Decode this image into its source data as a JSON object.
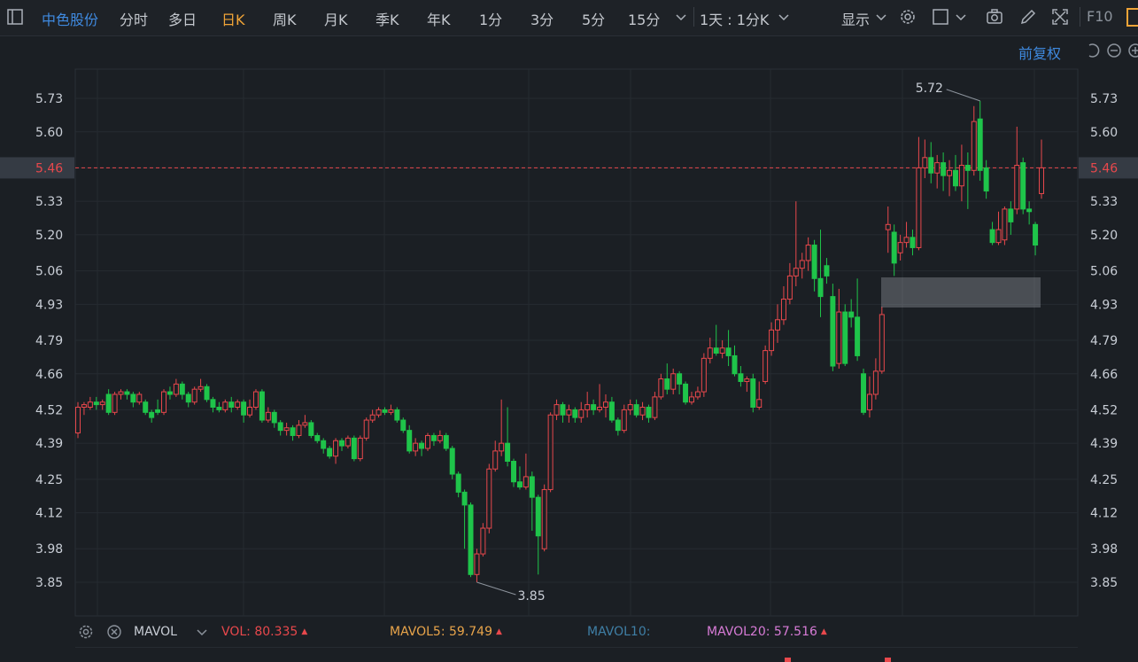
{
  "toolbar": {
    "stock_name": "中色股份",
    "periods": [
      "分时",
      "多日",
      "日K",
      "周K",
      "月K",
      "季K",
      "年K",
      "1分",
      "3分",
      "5分",
      "15分"
    ],
    "active_period": "日K",
    "range_label": "1天 : 1分K",
    "display_label": "显示",
    "f10_label": "F10"
  },
  "adjust_label": "前复权",
  "colors": {
    "background": "#1b1f24",
    "up": "#e8484c",
    "down": "#1fc44a",
    "accent": "#f0a437",
    "link": "#3f8ae0",
    "current_price_line": "#e8484c",
    "mavol5": "#e8a44a",
    "mavol10": "#3f7fa6",
    "mavol20": "#d77bd6"
  },
  "icons": [
    "panel-toggle-icon",
    "chevron-down-icon",
    "gear-icon",
    "square-icon",
    "camera-icon",
    "pencil-icon",
    "fullscreen-icon",
    "undo-icon",
    "zoom-out-icon",
    "zoom-in-icon",
    "close-circle-icon"
  ],
  "volume_bar": {
    "indicator": "MAVOL",
    "vol_label": "VOL:",
    "vol_value": "80.335",
    "mavol5_label": "MAVOL5:",
    "mavol5_value": "59.749",
    "mavol10_label": "MAVOL10:",
    "mavol10_value": "",
    "mavol20_label": "MAVOL20:",
    "mavol20_value": "57.516"
  },
  "chart_data": {
    "type": "candlestick",
    "ylim": [
      3.79,
      5.8
    ],
    "y_ticks": [
      "5.73",
      "5.60",
      "5.46",
      "5.33",
      "5.20",
      "5.06",
      "4.93",
      "4.79",
      "4.66",
      "4.52",
      "4.39",
      "4.25",
      "4.12",
      "3.98",
      "3.85"
    ],
    "current_price": "5.46",
    "high_annotation": "5.72",
    "low_annotation": "3.85",
    "candles": [
      [
        4.43,
        4.53,
        4.55,
        4.41
      ],
      [
        4.53,
        4.54,
        4.55,
        4.5
      ],
      [
        4.53,
        4.55,
        4.57,
        4.52
      ],
      [
        4.55,
        4.54,
        4.57,
        4.52
      ],
      [
        4.54,
        4.55,
        4.56,
        4.52
      ],
      [
        4.58,
        4.51,
        4.6,
        4.5
      ],
      [
        4.51,
        4.58,
        4.59,
        4.5
      ],
      [
        4.58,
        4.59,
        4.6,
        4.56
      ],
      [
        4.59,
        4.58,
        4.6,
        4.56
      ],
      [
        4.58,
        4.55,
        4.59,
        4.53
      ],
      [
        4.55,
        4.58,
        4.59,
        4.54
      ],
      [
        4.55,
        4.51,
        4.56,
        4.5
      ],
      [
        4.51,
        4.49,
        4.52,
        4.47
      ],
      [
        4.52,
        4.51,
        4.56,
        4.5
      ],
      [
        4.51,
        4.59,
        4.6,
        4.5
      ],
      [
        4.59,
        4.58,
        4.61,
        4.56
      ],
      [
        4.58,
        4.62,
        4.64,
        4.57
      ],
      [
        4.62,
        4.58,
        4.63,
        4.56
      ],
      [
        4.58,
        4.55,
        4.59,
        4.53
      ],
      [
        4.55,
        4.6,
        4.61,
        4.54
      ],
      [
        4.6,
        4.61,
        4.64,
        4.59
      ],
      [
        4.61,
        4.56,
        4.62,
        4.55
      ],
      [
        4.56,
        4.53,
        4.57,
        4.51
      ],
      [
        4.53,
        4.52,
        4.55,
        4.51
      ],
      [
        4.52,
        4.55,
        4.56,
        4.51
      ],
      [
        4.55,
        4.53,
        4.57,
        4.51
      ],
      [
        4.53,
        4.55,
        4.56,
        4.52
      ],
      [
        4.55,
        4.5,
        4.56,
        4.47
      ],
      [
        4.5,
        4.53,
        4.56,
        4.49
      ],
      [
        4.53,
        4.59,
        4.6,
        4.52
      ],
      [
        4.59,
        4.48,
        4.6,
        4.47
      ],
      [
        4.48,
        4.51,
        4.53,
        4.47
      ],
      [
        4.51,
        4.47,
        4.52,
        4.45
      ],
      [
        4.47,
        4.44,
        4.48,
        4.42
      ],
      [
        4.44,
        4.45,
        4.47,
        4.42
      ],
      [
        4.45,
        4.42,
        4.46,
        4.4
      ],
      [
        4.42,
        4.46,
        4.48,
        4.41
      ],
      [
        4.46,
        4.47,
        4.5,
        4.45
      ],
      [
        4.47,
        4.42,
        4.48,
        4.41
      ],
      [
        4.42,
        4.4,
        4.43,
        4.39
      ],
      [
        4.4,
        4.37,
        4.41,
        4.35
      ],
      [
        4.37,
        4.34,
        4.38,
        4.33
      ],
      [
        4.34,
        4.4,
        4.41,
        4.31
      ],
      [
        4.4,
        4.38,
        4.41,
        4.36
      ],
      [
        4.38,
        4.41,
        4.42,
        4.37
      ],
      [
        4.41,
        4.33,
        4.42,
        4.32
      ],
      [
        4.33,
        4.41,
        4.42,
        4.32
      ],
      [
        4.41,
        4.48,
        4.49,
        4.4
      ],
      [
        4.48,
        4.5,
        4.52,
        4.47
      ],
      [
        4.5,
        4.52,
        4.53,
        4.49
      ],
      [
        4.52,
        4.51,
        4.53,
        4.5
      ],
      [
        4.51,
        4.52,
        4.54,
        4.5
      ],
      [
        4.52,
        4.48,
        4.53,
        4.47
      ],
      [
        4.48,
        4.44,
        4.49,
        4.43
      ],
      [
        4.44,
        4.36,
        4.46,
        4.35
      ],
      [
        4.36,
        4.39,
        4.41,
        4.34
      ],
      [
        4.39,
        4.37,
        4.4,
        4.34
      ],
      [
        4.37,
        4.42,
        4.43,
        4.36
      ],
      [
        4.42,
        4.4,
        4.43,
        4.38
      ],
      [
        4.4,
        4.42,
        4.44,
        4.39
      ],
      [
        4.42,
        4.37,
        4.43,
        4.36
      ],
      [
        4.37,
        4.27,
        4.38,
        4.25
      ],
      [
        4.27,
        4.2,
        4.28,
        4.18
      ],
      [
        4.2,
        4.15,
        4.21,
        3.98
      ],
      [
        4.15,
        3.88,
        4.16,
        3.87
      ],
      [
        3.88,
        3.96,
        3.98,
        3.85
      ],
      [
        3.96,
        4.06,
        4.08,
        3.95
      ],
      [
        4.06,
        4.29,
        4.31,
        4.04
      ],
      [
        4.29,
        4.36,
        4.4,
        4.28
      ],
      [
        4.36,
        4.39,
        4.56,
        4.34
      ],
      [
        4.39,
        4.32,
        4.53,
        4.3
      ],
      [
        4.32,
        4.24,
        4.33,
        4.22
      ],
      [
        4.24,
        4.22,
        4.3,
        4.21
      ],
      [
        4.22,
        4.26,
        4.35,
        4.21
      ],
      [
        4.26,
        4.18,
        4.28,
        4.05
      ],
      [
        4.18,
        4.03,
        4.19,
        3.88
      ],
      [
        3.98,
        4.21,
        4.23,
        3.97
      ],
      [
        4.21,
        4.5,
        4.51,
        4.2
      ],
      [
        4.5,
        4.54,
        4.56,
        4.48
      ],
      [
        4.54,
        4.5,
        4.55,
        4.47
      ],
      [
        4.5,
        4.52,
        4.54,
        4.47
      ],
      [
        4.52,
        4.49,
        4.53,
        4.47
      ],
      [
        4.49,
        4.52,
        4.55,
        4.47
      ],
      [
        4.52,
        4.54,
        4.59,
        4.49
      ],
      [
        4.54,
        4.52,
        4.56,
        4.5
      ],
      [
        4.52,
        4.53,
        4.62,
        4.51
      ],
      [
        4.53,
        4.55,
        4.58,
        4.49
      ],
      [
        4.55,
        4.48,
        4.57,
        4.47
      ],
      [
        4.48,
        4.44,
        4.49,
        4.42
      ],
      [
        4.44,
        4.52,
        4.54,
        4.43
      ],
      [
        4.52,
        4.54,
        4.56,
        4.5
      ],
      [
        4.54,
        4.5,
        4.56,
        4.49
      ],
      [
        4.5,
        4.53,
        4.55,
        4.48
      ],
      [
        4.53,
        4.49,
        4.54,
        4.47
      ],
      [
        4.49,
        4.57,
        4.59,
        4.48
      ],
      [
        4.57,
        4.64,
        4.66,
        4.56
      ],
      [
        4.64,
        4.6,
        4.7,
        4.58
      ],
      [
        4.6,
        4.66,
        4.68,
        4.58
      ],
      [
        4.66,
        4.62,
        4.67,
        4.58
      ],
      [
        4.62,
        4.55,
        4.63,
        4.54
      ],
      [
        4.55,
        4.57,
        4.59,
        4.54
      ],
      [
        4.57,
        4.59,
        4.61,
        4.56
      ],
      [
        4.59,
        4.72,
        4.74,
        4.57
      ],
      [
        4.72,
        4.76,
        4.8,
        4.7
      ],
      [
        4.76,
        4.74,
        4.85,
        4.73
      ],
      [
        4.74,
        4.76,
        4.79,
        4.72
      ],
      [
        4.76,
        4.73,
        4.83,
        4.69
      ],
      [
        4.73,
        4.66,
        4.77,
        4.65
      ],
      [
        4.66,
        4.63,
        4.69,
        4.61
      ],
      [
        4.63,
        4.64,
        4.65,
        4.59
      ],
      [
        4.64,
        4.53,
        4.66,
        4.51
      ],
      [
        4.53,
        4.56,
        4.63,
        4.52
      ],
      [
        4.63,
        4.75,
        4.77,
        4.62
      ],
      [
        4.75,
        4.83,
        4.86,
        4.73
      ],
      [
        4.83,
        4.87,
        4.93,
        4.78
      ],
      [
        4.87,
        4.95,
        5.0,
        4.85
      ],
      [
        4.95,
        5.04,
        5.09,
        4.93
      ],
      [
        5.04,
        5.07,
        5.33,
        5.0
      ],
      [
        5.07,
        5.1,
        5.13,
        5.03
      ],
      [
        5.1,
        5.16,
        5.19,
        5.06
      ],
      [
        5.16,
        5.03,
        5.18,
        4.98
      ],
      [
        5.03,
        4.96,
        5.22,
        4.88
      ],
      [
        5.08,
        5.04,
        5.11,
        5.01
      ],
      [
        4.96,
        4.69,
        5.01,
        4.67
      ],
      [
        4.7,
        4.9,
        4.99,
        4.68
      ],
      [
        4.9,
        4.7,
        4.93,
        4.69
      ],
      [
        4.9,
        4.88,
        4.95,
        4.84
      ],
      [
        4.88,
        4.73,
        5.03,
        4.71
      ],
      [
        4.66,
        4.51,
        4.68,
        4.5
      ],
      [
        4.52,
        4.58,
        4.65,
        4.49
      ],
      [
        4.58,
        4.67,
        4.72,
        4.56
      ],
      [
        4.67,
        4.89,
        4.92,
        4.66
      ],
      [
        5.22,
        5.24,
        5.31,
        5.13
      ],
      [
        5.21,
        5.09,
        5.24,
        5.04
      ],
      [
        5.13,
        5.17,
        5.2,
        5.1
      ],
      [
        5.17,
        5.19,
        5.25,
        5.15
      ],
      [
        5.19,
        5.15,
        5.22,
        5.12
      ],
      [
        5.15,
        5.46,
        5.58,
        5.14
      ],
      [
        5.46,
        5.5,
        5.57,
        5.42
      ],
      [
        5.5,
        5.44,
        5.56,
        5.4
      ],
      [
        5.44,
        5.48,
        5.51,
        5.38
      ],
      [
        5.48,
        5.43,
        5.52,
        5.37
      ],
      [
        5.43,
        5.45,
        5.49,
        5.35
      ],
      [
        5.45,
        5.39,
        5.51,
        5.37
      ],
      [
        5.39,
        5.47,
        5.55,
        5.33
      ],
      [
        5.47,
        5.45,
        5.52,
        5.3
      ],
      [
        5.45,
        5.64,
        5.7,
        5.43
      ],
      [
        5.65,
        5.45,
        5.72,
        5.41
      ],
      [
        5.46,
        5.37,
        5.49,
        5.34
      ],
      [
        5.22,
        5.17,
        5.25,
        5.16
      ],
      [
        5.17,
        5.22,
        5.29,
        5.16
      ],
      [
        5.18,
        5.3,
        5.31,
        5.16
      ],
      [
        5.3,
        5.25,
        5.33,
        5.2
      ],
      [
        5.3,
        5.47,
        5.62,
        5.28
      ],
      [
        5.48,
        5.3,
        5.5,
        5.28
      ],
      [
        5.3,
        5.29,
        5.33,
        5.24
      ],
      [
        5.24,
        5.16,
        5.25,
        5.12
      ],
      [
        5.36,
        5.46,
        5.57,
        5.34
      ]
    ]
  }
}
